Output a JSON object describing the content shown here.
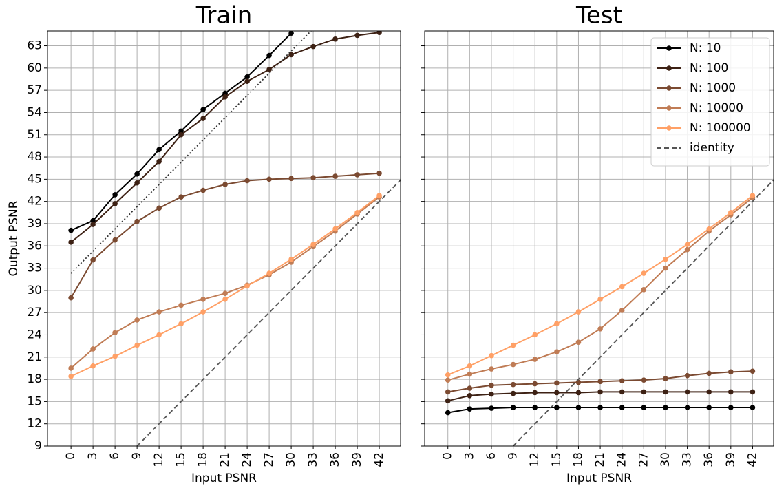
{
  "chart_data": [
    {
      "type": "line",
      "title": "Train",
      "x_label": "Input PSNR",
      "y_label": "Output PSNR",
      "x": [
        0,
        3,
        6,
        9,
        12,
        15,
        18,
        21,
        24,
        27,
        30,
        33,
        36,
        39,
        42
      ],
      "xlim": [
        -3.2,
        44.9
      ],
      "ylim": [
        9,
        65
      ],
      "xticks": [
        0,
        3,
        6,
        9,
        12,
        15,
        18,
        21,
        24,
        27,
        30,
        33,
        36,
        39,
        42
      ],
      "yticks": [
        9,
        12,
        15,
        18,
        21,
        24,
        27,
        30,
        33,
        36,
        39,
        42,
        45,
        48,
        51,
        54,
        57,
        60,
        63
      ],
      "grid": true,
      "ytick_labels": true,
      "series": [
        {
          "color": "#000000",
          "values": [
            38.1,
            39.4,
            42.9,
            45.7,
            49.0,
            51.5,
            54.4,
            56.6,
            58.8,
            61.7,
            64.7,
            null,
            null,
            null,
            null
          ]
        },
        {
          "color": "#3d2114",
          "values": [
            36.5,
            38.9,
            41.7,
            44.5,
            47.4,
            51.0,
            53.2,
            56.1,
            58.2,
            59.8,
            61.8,
            62.9,
            63.9,
            64.4,
            64.8
          ]
        },
        {
          "color": "#7b4a31",
          "values": [
            29.0,
            34.1,
            36.8,
            39.3,
            41.1,
            42.6,
            43.5,
            44.3,
            44.8,
            45.0,
            45.1,
            45.2,
            45.4,
            45.6,
            45.8
          ]
        },
        {
          "color": "#c07c55",
          "values": [
            19.5,
            22.1,
            24.3,
            26.0,
            27.1,
            28.0,
            28.8,
            29.6,
            30.7,
            32.1,
            33.8,
            35.9,
            38.0,
            40.3,
            42.6
          ]
        },
        {
          "color": "#ffa066",
          "values": [
            18.4,
            19.8,
            21.1,
            22.6,
            24.0,
            25.5,
            27.1,
            28.8,
            30.6,
            32.3,
            34.2,
            36.2,
            38.3,
            40.5,
            42.8
          ]
        },
        {
          "color": "#555555",
          "style": "dashed",
          "x": [
            9,
            44.9
          ],
          "values": [
            9,
            44.9
          ]
        },
        {
          "color": "#333333",
          "style": "dotted",
          "x": [
            0,
            33
          ],
          "values": [
            32.3,
            65.3
          ]
        }
      ]
    },
    {
      "type": "line",
      "title": "Test",
      "x_label": "Input PSNR",
      "x": [
        0,
        3,
        6,
        9,
        12,
        15,
        18,
        21,
        24,
        27,
        30,
        33,
        36,
        39,
        42
      ],
      "xlim": [
        -3.2,
        44.9
      ],
      "ylim": [
        9,
        65
      ],
      "xticks": [
        0,
        3,
        6,
        9,
        12,
        15,
        18,
        21,
        24,
        27,
        30,
        33,
        36,
        39,
        42
      ],
      "yticks": [
        9,
        12,
        15,
        18,
        21,
        24,
        27,
        30,
        33,
        36,
        39,
        42,
        45,
        48,
        51,
        54,
        57,
        60,
        63
      ],
      "grid": true,
      "ytick_labels": false,
      "legend": "upper right",
      "series": [
        {
          "name": "N: 10",
          "color": "#000000",
          "values": [
            13.5,
            14.0,
            14.1,
            14.2,
            14.2,
            14.2,
            14.2,
            14.2,
            14.2,
            14.2,
            14.2,
            14.2,
            14.2,
            14.2,
            14.2
          ]
        },
        {
          "name": "N: 100",
          "color": "#3d2114",
          "values": [
            15.1,
            15.8,
            16.0,
            16.1,
            16.2,
            16.2,
            16.2,
            16.3,
            16.3,
            16.3,
            16.3,
            16.3,
            16.3,
            16.3,
            16.3
          ]
        },
        {
          "name": "N: 1000",
          "color": "#7b4a31",
          "values": [
            16.3,
            16.8,
            17.2,
            17.3,
            17.4,
            17.5,
            17.6,
            17.7,
            17.8,
            17.9,
            18.1,
            18.5,
            18.8,
            19.0,
            19.1
          ]
        },
        {
          "name": "N: 10000",
          "color": "#c07c55",
          "values": [
            17.9,
            18.7,
            19.4,
            20.0,
            20.7,
            21.7,
            23.0,
            24.8,
            27.3,
            30.1,
            33.0,
            35.5,
            38.0,
            40.2,
            42.5
          ]
        },
        {
          "name": "N: 100000",
          "color": "#ffa066",
          "values": [
            18.6,
            19.8,
            21.2,
            22.6,
            24.0,
            25.5,
            27.1,
            28.8,
            30.5,
            32.3,
            34.2,
            36.2,
            38.3,
            40.5,
            42.8
          ]
        },
        {
          "name": "identity",
          "color": "#555555",
          "style": "dashed",
          "x": [
            9,
            44.9
          ],
          "values": [
            9,
            44.9
          ]
        }
      ]
    }
  ]
}
